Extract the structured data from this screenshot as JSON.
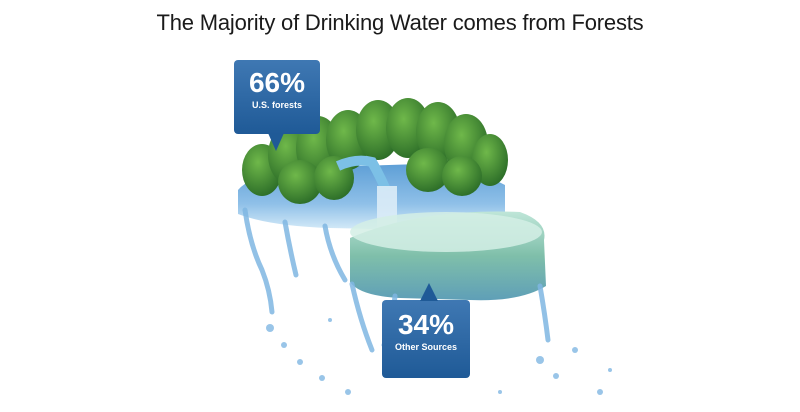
{
  "chart_data": {
    "type": "pie",
    "title": "The Majority of Drinking Water comes from Forests",
    "slices": [
      {
        "label": "U.S. forests",
        "value": 66,
        "display": "66%",
        "color": "#2e6aa8"
      },
      {
        "label": "Other Sources",
        "value": 34,
        "display": "34%",
        "color": "#2e6aa8"
      }
    ]
  },
  "colors": {
    "callout_top": "#3f78b3",
    "callout_bottom": "#1f5a97",
    "water": "#6aa6d8",
    "water_dark": "#2f6fa8",
    "foliage": "#3f8f3a",
    "foliage_dark": "#2a6b27",
    "other_top": "#a9d9c9"
  },
  "icons": [
    "water-splash-icon",
    "forest-trees-icon",
    "waterfall-icon"
  ]
}
